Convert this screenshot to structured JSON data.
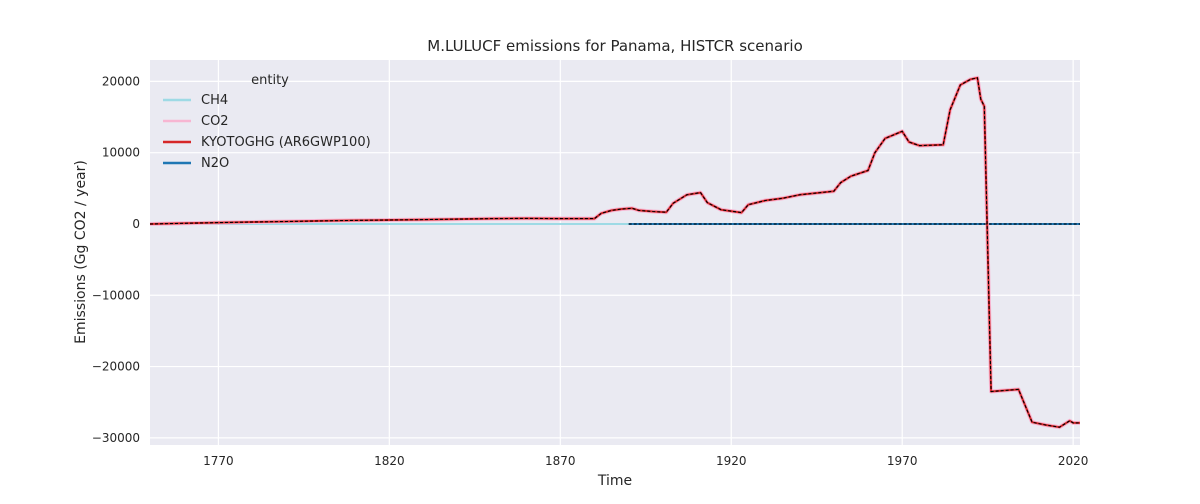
{
  "chart_data": {
    "type": "line",
    "title": "M.LULUCF emissions for Panama, HISTCR scenario",
    "xlabel": "Time",
    "ylabel": "Emissions (Gg CO2 / year)",
    "xlim": [
      1750,
      2022
    ],
    "ylim": [
      -31000,
      23000
    ],
    "x_ticks": [
      1770,
      1820,
      1870,
      1920,
      1970,
      2020
    ],
    "y_ticks": [
      -30000,
      -20000,
      -10000,
      0,
      10000,
      20000
    ],
    "y_tick_labels": [
      "−30000",
      "−20000",
      "−10000",
      "0",
      "10000",
      "20000"
    ],
    "grid": true,
    "legend": {
      "title": "entity",
      "placement": "top-left"
    },
    "series": [
      {
        "name": "CH4",
        "color": "#9edae5",
        "points": [
          [
            1750,
            0
          ],
          [
            1890,
            0
          ]
        ]
      },
      {
        "name": "CO2",
        "color": "#f7b6d2",
        "points": [
          [
            1750,
            0
          ],
          [
            1890,
            2200
          ],
          [
            1990,
            20000
          ],
          [
            2022,
            -28000
          ]
        ]
      },
      {
        "name": "KYOTOGHG (AR6GWP100)",
        "color": "#d62728",
        "points": [
          [
            1750,
            0
          ],
          [
            1760,
            100
          ],
          [
            1770,
            200
          ],
          [
            1780,
            280
          ],
          [
            1790,
            350
          ],
          [
            1800,
            430
          ],
          [
            1810,
            500
          ],
          [
            1820,
            560
          ],
          [
            1830,
            620
          ],
          [
            1840,
            680
          ],
          [
            1850,
            760
          ],
          [
            1860,
            780
          ],
          [
            1870,
            760
          ],
          [
            1880,
            760
          ],
          [
            1882,
            1500
          ],
          [
            1885,
            1900
          ],
          [
            1888,
            2100
          ],
          [
            1891,
            2200
          ],
          [
            1893,
            1900
          ],
          [
            1897,
            1750
          ],
          [
            1901,
            1650
          ],
          [
            1903,
            2900
          ],
          [
            1907,
            4100
          ],
          [
            1911,
            4400
          ],
          [
            1913,
            3000
          ],
          [
            1917,
            2000
          ],
          [
            1923,
            1600
          ],
          [
            1925,
            2700
          ],
          [
            1930,
            3300
          ],
          [
            1935,
            3600
          ],
          [
            1940,
            4100
          ],
          [
            1950,
            4600
          ],
          [
            1952,
            5800
          ],
          [
            1955,
            6700
          ],
          [
            1960,
            7500
          ],
          [
            1962,
            10000
          ],
          [
            1965,
            12000
          ],
          [
            1970,
            13000
          ],
          [
            1972,
            11500
          ],
          [
            1975,
            11000
          ],
          [
            1982,
            11100
          ],
          [
            1984,
            16000
          ],
          [
            1987,
            19500
          ],
          [
            1990,
            20300
          ],
          [
            1992,
            20500
          ],
          [
            1993,
            17500
          ],
          [
            1994,
            16500
          ],
          [
            1996,
            -23500
          ],
          [
            2004,
            -23200
          ],
          [
            2008,
            -27800
          ],
          [
            2012,
            -28200
          ],
          [
            2016,
            -28500
          ],
          [
            2019,
            -27600
          ],
          [
            2020,
            -27900
          ],
          [
            2022,
            -27900
          ]
        ]
      },
      {
        "name": "N2O",
        "color": "#1f77b4",
        "points": [
          [
            1750,
            0
          ],
          [
            2022,
            0
          ]
        ]
      }
    ],
    "overlay": {
      "style": "black-dashed",
      "color": "#000000",
      "points": [
        [
          1890,
          0
        ],
        [
          2022,
          0
        ]
      ]
    }
  }
}
